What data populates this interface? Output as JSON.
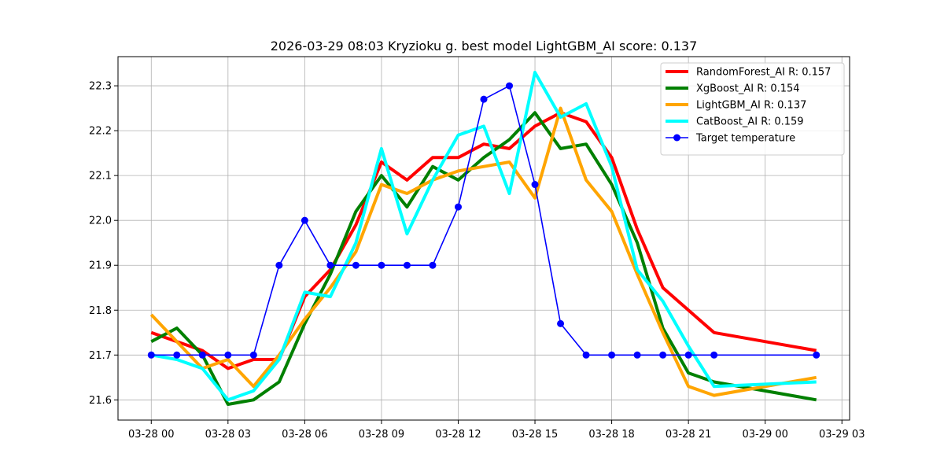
{
  "chart_data": {
    "type": "line",
    "title": "2026-03-29 08:03 Kryzioku g. best model LightGBM_AI score: 0.137",
    "xlabel": "",
    "ylabel": "",
    "x_unit": "hours",
    "x_ticks": [
      {
        "value": 0,
        "label": "03-28 00"
      },
      {
        "value": 3,
        "label": "03-28 03"
      },
      {
        "value": 6,
        "label": "03-28 06"
      },
      {
        "value": 9,
        "label": "03-28 09"
      },
      {
        "value": 12,
        "label": "03-28 12"
      },
      {
        "value": 15,
        "label": "03-28 15"
      },
      {
        "value": 18,
        "label": "03-28 18"
      },
      {
        "value": 21,
        "label": "03-28 21"
      },
      {
        "value": 24,
        "label": "03-29 00"
      },
      {
        "value": 27,
        "label": "03-29 03"
      }
    ],
    "y_ticks": [
      21.6,
      21.7,
      21.8,
      21.9,
      22.0,
      22.1,
      22.2,
      22.3
    ],
    "xlim": [
      -1.3,
      27.3
    ],
    "ylim": [
      21.555,
      22.365
    ],
    "grid": true,
    "legend_position": "top-right",
    "series": [
      {
        "name": "RandomForest_AI R: 0.157",
        "color": "#ff0000",
        "style": "thick",
        "points": [
          [
            0,
            21.75
          ],
          [
            1,
            21.73
          ],
          [
            2,
            21.71
          ],
          [
            3,
            21.67
          ],
          [
            4,
            21.69
          ],
          [
            5,
            21.69
          ],
          [
            6,
            21.83
          ],
          [
            7,
            21.89
          ],
          [
            8,
            21.99
          ],
          [
            9,
            22.13
          ],
          [
            10,
            22.09
          ],
          [
            11,
            22.14
          ],
          [
            12,
            22.14
          ],
          [
            13,
            22.17
          ],
          [
            14,
            22.16
          ],
          [
            15,
            22.21
          ],
          [
            16,
            22.24
          ],
          [
            17,
            22.22
          ],
          [
            18,
            22.14
          ],
          [
            19,
            21.98
          ],
          [
            20,
            21.85
          ],
          [
            21,
            21.8
          ],
          [
            22,
            21.75
          ],
          [
            26,
            21.71
          ]
        ]
      },
      {
        "name": "XgBoost_AI R: 0.154",
        "color": "#008000",
        "style": "thick",
        "points": [
          [
            0,
            21.73
          ],
          [
            1,
            21.76
          ],
          [
            2,
            21.7
          ],
          [
            3,
            21.59
          ],
          [
            4,
            21.6
          ],
          [
            5,
            21.64
          ],
          [
            6,
            21.77
          ],
          [
            7,
            21.88
          ],
          [
            8,
            22.02
          ],
          [
            9,
            22.1
          ],
          [
            10,
            22.03
          ],
          [
            11,
            22.12
          ],
          [
            12,
            22.09
          ],
          [
            13,
            22.14
          ],
          [
            14,
            22.18
          ],
          [
            15,
            22.24
          ],
          [
            16,
            22.16
          ],
          [
            17,
            22.17
          ],
          [
            18,
            22.08
          ],
          [
            19,
            21.95
          ],
          [
            20,
            21.76
          ],
          [
            21,
            21.66
          ],
          [
            22,
            21.64
          ],
          [
            26,
            21.6
          ]
        ]
      },
      {
        "name": "LightGBM_AI R: 0.137",
        "color": "#ffa500",
        "style": "thick",
        "points": [
          [
            0,
            21.79
          ],
          [
            1,
            21.73
          ],
          [
            2,
            21.67
          ],
          [
            3,
            21.69
          ],
          [
            4,
            21.63
          ],
          [
            5,
            21.7
          ],
          [
            6,
            21.78
          ],
          [
            7,
            21.85
          ],
          [
            8,
            21.93
          ],
          [
            9,
            22.08
          ],
          [
            10,
            22.06
          ],
          [
            11,
            22.09
          ],
          [
            12,
            22.11
          ],
          [
            13,
            22.12
          ],
          [
            14,
            22.13
          ],
          [
            15,
            22.05
          ],
          [
            16,
            22.25
          ],
          [
            17,
            22.09
          ],
          [
            18,
            22.02
          ],
          [
            19,
            21.88
          ],
          [
            20,
            21.75
          ],
          [
            21,
            21.63
          ],
          [
            22,
            21.61
          ],
          [
            26,
            21.65
          ]
        ]
      },
      {
        "name": "CatBoost_AI R: 0.159",
        "color": "#00ffff",
        "style": "thick",
        "points": [
          [
            0,
            21.7
          ],
          [
            1,
            21.69
          ],
          [
            2,
            21.67
          ],
          [
            3,
            21.6
          ],
          [
            4,
            21.62
          ],
          [
            5,
            21.69
          ],
          [
            6,
            21.84
          ],
          [
            7,
            21.83
          ],
          [
            8,
            21.95
          ],
          [
            9,
            22.16
          ],
          [
            10,
            21.97
          ],
          [
            11,
            22.09
          ],
          [
            12,
            22.19
          ],
          [
            13,
            22.21
          ],
          [
            14,
            22.06
          ],
          [
            15,
            22.33
          ],
          [
            16,
            22.23
          ],
          [
            17,
            22.26
          ],
          [
            18,
            22.12
          ],
          [
            19,
            21.89
          ],
          [
            20,
            21.82
          ],
          [
            21,
            21.72
          ],
          [
            22,
            21.63
          ],
          [
            26,
            21.64
          ]
        ]
      },
      {
        "name": "Target temperature",
        "color": "#0000ff",
        "style": "marker",
        "points": [
          [
            0,
            21.7
          ],
          [
            1,
            21.7
          ],
          [
            2,
            21.7
          ],
          [
            3,
            21.7
          ],
          [
            4,
            21.7
          ],
          [
            5,
            21.9
          ],
          [
            6,
            22.0
          ],
          [
            7,
            21.9
          ],
          [
            8,
            21.9
          ],
          [
            9,
            21.9
          ],
          [
            10,
            21.9
          ],
          [
            11,
            21.9
          ],
          [
            12,
            22.03
          ],
          [
            13,
            22.27
          ],
          [
            14,
            22.3
          ],
          [
            15,
            22.08
          ],
          [
            16,
            21.77
          ],
          [
            17,
            21.7
          ],
          [
            18,
            21.7
          ],
          [
            19,
            21.7
          ],
          [
            20,
            21.7
          ],
          [
            21,
            21.7
          ],
          [
            22,
            21.7
          ],
          [
            26,
            21.7
          ]
        ]
      }
    ]
  }
}
